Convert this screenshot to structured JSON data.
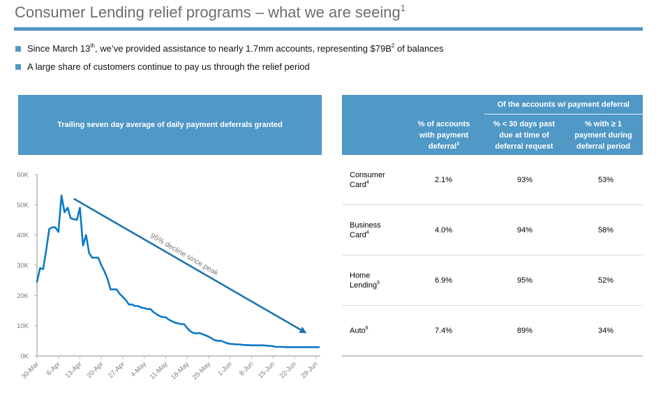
{
  "page": {
    "title": "Consumer Lending relief programs – what we are seeing",
    "title_footnote": "1",
    "accent_color": "#5098c6",
    "bullets": [
      {
        "parts": [
          "Since March 13",
          "th",
          ", we’ve provided assistance to nearly 1.7mm accounts, representing $79B",
          "2",
          " of balances"
        ]
      },
      {
        "parts": [
          "A large share of customers continue to pay us through the relief period"
        ]
      }
    ]
  },
  "chart_data": {
    "type": "line",
    "title": "Trailing seven day average of daily payment deferrals granted",
    "xlabel": "",
    "ylabel": "",
    "ylim": [
      0,
      60000
    ],
    "yticks": [
      0,
      10000,
      20000,
      30000,
      40000,
      50000,
      60000
    ],
    "ytick_labels": [
      "0K",
      "10K",
      "20K",
      "30K",
      "40K",
      "50K",
      "60K"
    ],
    "x_tick_labels": [
      "30-Mar",
      "6-Apr",
      "13-Apr",
      "20-Apr",
      "27-Apr",
      "4-May",
      "11-May",
      "18-May",
      "25-May",
      "1-Jun",
      "8-Jun",
      "15-Jun",
      "22-Jun",
      "29-Jun"
    ],
    "x_unit": "days since 30-Mar",
    "xlim": [
      0,
      92
    ],
    "grid": false,
    "line_color": "#0a78c8",
    "series": [
      {
        "name": "Daily payment deferrals (7-day avg)",
        "x": [
          0,
          1,
          2,
          3,
          4,
          5,
          6,
          7,
          8,
          9,
          10,
          11,
          12,
          13,
          14,
          15,
          16,
          17,
          18,
          19,
          20,
          21,
          22,
          23,
          24,
          25,
          26,
          27,
          28,
          29,
          30,
          31,
          32,
          33,
          34,
          35,
          36,
          37,
          38,
          39,
          40,
          41,
          42,
          43,
          44,
          45,
          46,
          47,
          48,
          49,
          50,
          51,
          52,
          53,
          54,
          55,
          56,
          57,
          58,
          59,
          60,
          61,
          62,
          63,
          64,
          65,
          66,
          67,
          68,
          69,
          70,
          71,
          72,
          73,
          74,
          75,
          76,
          77,
          78,
          79,
          80,
          81,
          82,
          83,
          84,
          85,
          86,
          87,
          88,
          89,
          90,
          91,
          92
        ],
        "values": [
          24500,
          29000,
          28700,
          35000,
          42000,
          42500,
          42500,
          41000,
          53000,
          47500,
          49000,
          45500,
          45200,
          45000,
          49000,
          36500,
          40000,
          34000,
          32500,
          32500,
          32500,
          30000,
          28000,
          25500,
          22000,
          22000,
          22000,
          20500,
          19500,
          18500,
          17000,
          17000,
          16500,
          16500,
          16000,
          15800,
          15500,
          15500,
          14500,
          13800,
          13200,
          12800,
          12800,
          12000,
          11500,
          11000,
          10800,
          10500,
          10500,
          9200,
          8200,
          7600,
          7400,
          7600,
          7200,
          6800,
          6400,
          5800,
          5200,
          5000,
          5000,
          4600,
          4200,
          4000,
          3900,
          3800,
          3800,
          3700,
          3600,
          3600,
          3500,
          3500,
          3500,
          3500,
          3500,
          3400,
          3300,
          3200,
          3000,
          3000,
          3000,
          2900,
          2900,
          2900,
          2900,
          2900,
          2900,
          2900,
          2900,
          2900,
          2900,
          2900,
          2900
        ]
      }
    ],
    "annotations": [
      {
        "text": "95% decline since peak",
        "type": "arrow",
        "from": [
          12,
          52000
        ],
        "to": [
          88,
          7500
        ]
      }
    ]
  },
  "table": {
    "group_header": "Of the accounts  w/ payment deferral",
    "columns": [
      {
        "label": "",
        "footnote": ""
      },
      {
        "label": "% of accounts with payment deferral",
        "lines": [
          "% of accounts",
          "with payment",
          "deferral"
        ],
        "footnote": "3"
      },
      {
        "label": "% < 30 days past due at time of deferral request",
        "lines": [
          "% < 30 days past",
          "due at time of",
          "deferral request"
        ],
        "footnote": ""
      },
      {
        "label": "% with ≥ 1 payment during deferral period",
        "lines": [
          "% with ≥ 1",
          "payment during",
          "deferral period"
        ],
        "footnote": ""
      }
    ],
    "rows": [
      {
        "label_lines": [
          "Consumer",
          "Card"
        ],
        "footnote": "4",
        "pct_deferral": "2.1%",
        "pct_current": "93%",
        "pct_paying": "53%"
      },
      {
        "label_lines": [
          "Business",
          "Card"
        ],
        "footnote": "4",
        "pct_deferral": "4.0%",
        "pct_current": "94%",
        "pct_paying": "58%"
      },
      {
        "label_lines": [
          "Home",
          "Lending"
        ],
        "footnote": "5",
        "pct_deferral": "6.9%",
        "pct_current": "95%",
        "pct_paying": "52%"
      },
      {
        "label_lines": [
          "Auto"
        ],
        "footnote": "6",
        "pct_deferral": "7.4%",
        "pct_current": "89%",
        "pct_paying": "34%"
      }
    ]
  }
}
